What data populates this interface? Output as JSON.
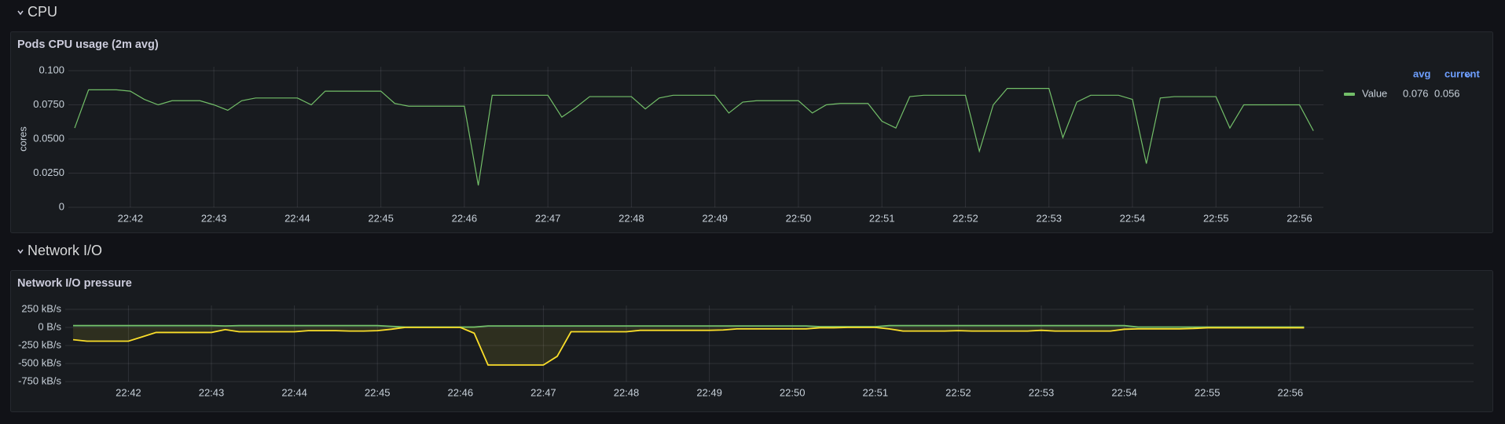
{
  "sections": [
    "CPU",
    "Network I/O"
  ],
  "chart_data": [
    {
      "type": "line",
      "title": "Pods CPU usage (2m avg)",
      "y_label": "cores",
      "categories": [
        null,
        null,
        null,
        null,
        "22:42",
        null,
        null,
        null,
        null,
        null,
        "22:43",
        null,
        null,
        null,
        null,
        null,
        "22:44",
        null,
        null,
        null,
        null,
        null,
        "22:45",
        null,
        null,
        null,
        null,
        null,
        "22:46",
        null,
        null,
        null,
        null,
        null,
        "22:47",
        null,
        null,
        null,
        null,
        null,
        "22:48",
        null,
        null,
        null,
        null,
        null,
        "22:49",
        null,
        null,
        null,
        null,
        null,
        "22:50",
        null,
        null,
        null,
        null,
        null,
        "22:51",
        null,
        null,
        null,
        null,
        null,
        "22:52",
        null,
        null,
        null,
        null,
        null,
        "22:53",
        null,
        null,
        null,
        null,
        null,
        "22:54",
        null,
        null,
        null,
        null,
        null,
        "22:55",
        null,
        null,
        null,
        null,
        null,
        "22:56",
        null
      ],
      "series": [
        {
          "name": "Value",
          "color": "#73bf69",
          "avg": 0.076,
          "current": 0.056,
          "values": [
            0.058,
            0.086,
            0.086,
            0.086,
            0.085,
            0.079,
            0.075,
            0.078,
            0.078,
            0.078,
            0.075,
            0.071,
            0.078,
            0.08,
            0.08,
            0.08,
            0.08,
            0.075,
            0.085,
            0.085,
            0.085,
            0.085,
            0.085,
            0.076,
            0.074,
            0.074,
            0.074,
            0.074,
            0.074,
            0.016,
            0.082,
            0.082,
            0.082,
            0.082,
            0.082,
            0.066,
            0.073,
            0.081,
            0.081,
            0.081,
            0.081,
            0.072,
            0.08,
            0.082,
            0.082,
            0.082,
            0.082,
            0.069,
            0.077,
            0.078,
            0.078,
            0.078,
            0.078,
            0.069,
            0.075,
            0.076,
            0.076,
            0.076,
            0.063,
            0.058,
            0.081,
            0.082,
            0.082,
            0.082,
            0.082,
            0.041,
            0.075,
            0.087,
            0.087,
            0.087,
            0.087,
            0.051,
            0.077,
            0.082,
            0.082,
            0.082,
            0.079,
            0.032,
            0.08,
            0.081,
            0.081,
            0.081,
            0.081,
            0.058,
            0.075,
            0.075,
            0.075,
            0.075,
            0.075,
            0.056
          ]
        }
      ],
      "legend_columns": [
        "avg",
        "current"
      ],
      "ylim": [
        0,
        0.1
      ],
      "yticks": [
        0,
        {
          "value": 0.025,
          "label": "0.0250"
        },
        {
          "value": 0.05,
          "label": "0.0500"
        },
        {
          "value": 0.075,
          "label": "0.0750"
        },
        {
          "value": 0.1,
          "label": "0.100"
        }
      ],
      "grid": true,
      "fill": false
    },
    {
      "type": "line",
      "title": "Network I/O pressure",
      "categories": [
        null,
        null,
        null,
        null,
        "22:42",
        null,
        null,
        null,
        null,
        null,
        "22:43",
        null,
        null,
        null,
        null,
        null,
        "22:44",
        null,
        null,
        null,
        null,
        null,
        "22:45",
        null,
        null,
        null,
        null,
        null,
        "22:46",
        null,
        null,
        null,
        null,
        null,
        "22:47",
        null,
        null,
        null,
        null,
        null,
        "22:48",
        null,
        null,
        null,
        null,
        null,
        "22:49",
        null,
        null,
        null,
        null,
        null,
        "22:50",
        null,
        null,
        null,
        null,
        null,
        "22:51",
        null,
        null,
        null,
        null,
        null,
        "22:52",
        null,
        null,
        null,
        null,
        null,
        "22:53",
        null,
        null,
        null,
        null,
        null,
        "22:54",
        null,
        null,
        null,
        null,
        null,
        "22:55",
        null,
        null,
        null,
        null,
        null,
        "22:56",
        null
      ],
      "series": [
        {
          "color": "#73bf69",
          "values": [
            25,
            25,
            25,
            25,
            25,
            25,
            25,
            25,
            25,
            25,
            25,
            20,
            25,
            25,
            25,
            25,
            25,
            25,
            25,
            25,
            25,
            25,
            25,
            15,
            5,
            5,
            5,
            5,
            5,
            5,
            20,
            20,
            20,
            20,
            20,
            20,
            20,
            20,
            20,
            20,
            20,
            20,
            20,
            20,
            20,
            20,
            20,
            20,
            20,
            20,
            20,
            20,
            20,
            20,
            10,
            10,
            10,
            10,
            10,
            25,
            25,
            25,
            25,
            25,
            25,
            25,
            25,
            25,
            25,
            25,
            25,
            25,
            25,
            25,
            25,
            25,
            25,
            5,
            5,
            5,
            5,
            5,
            5,
            5,
            5,
            5,
            5,
            5,
            5,
            5
          ]
        },
        {
          "color": "#fade2a",
          "values": [
            -170,
            -190,
            -190,
            -190,
            -190,
            -130,
            -70,
            -70,
            -70,
            -70,
            -70,
            -30,
            -60,
            -60,
            -60,
            -60,
            -60,
            -45,
            -45,
            -45,
            -50,
            -50,
            -45,
            -25,
            0,
            0,
            0,
            0,
            0,
            -80,
            -520,
            -520,
            -520,
            -520,
            -520,
            -400,
            -60,
            -60,
            -60,
            -60,
            -60,
            -40,
            -40,
            -40,
            -40,
            -40,
            -40,
            -35,
            -20,
            -20,
            -20,
            -20,
            -20,
            -20,
            -5,
            -5,
            0,
            0,
            0,
            -20,
            -50,
            -50,
            -50,
            -50,
            -45,
            -50,
            -50,
            -50,
            -50,
            -50,
            -40,
            -50,
            -50,
            -50,
            -50,
            -50,
            -25,
            -20,
            -20,
            -20,
            -20,
            -15,
            -5,
            -5,
            -5,
            -5,
            -5,
            -5,
            -5,
            -5
          ]
        }
      ],
      "ylim": [
        -750,
        250
      ],
      "yticks": [
        {
          "value": 250,
          "label": "250 kB/s"
        },
        {
          "value": 0,
          "label": "0 B/s"
        },
        {
          "value": -250,
          "label": "-250 kB/s"
        },
        {
          "value": -500,
          "label": "-500 kB/s"
        },
        {
          "value": -750,
          "label": "-750 kB/s"
        }
      ],
      "grid": true,
      "fill": true
    }
  ]
}
